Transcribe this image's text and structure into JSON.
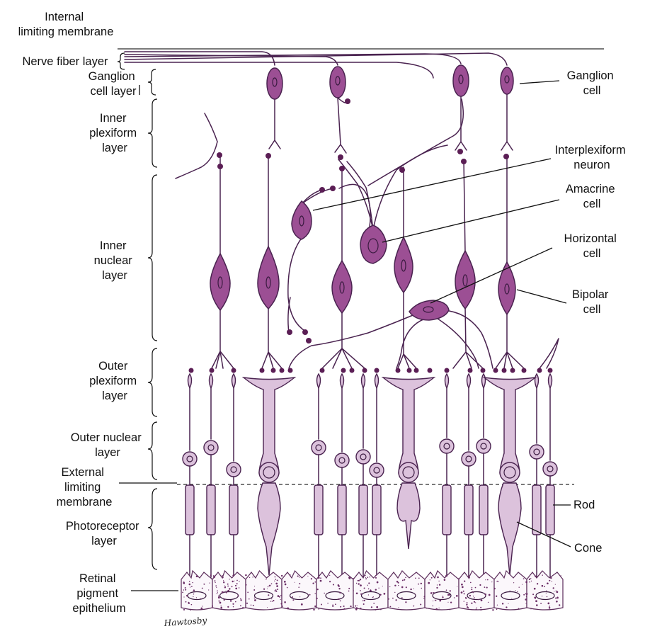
{
  "labels": {
    "internal_limiting_membrane": [
      "Internal",
      "limiting membrane"
    ],
    "nerve_fiber_layer": [
      "Nerve fiber layer"
    ],
    "ganglion_cell_layer": [
      "Ganglion",
      "cell layer"
    ],
    "inner_plexiform_layer": [
      "Inner",
      "plexiform",
      "layer"
    ],
    "inner_nuclear_layer": [
      "Inner",
      "nuclear",
      "layer"
    ],
    "outer_plexiform_layer": [
      "Outer",
      "plexiform",
      "layer"
    ],
    "outer_nuclear_layer": [
      "Outer nuclear",
      "layer"
    ],
    "external_limiting_membrane": [
      "External",
      "limiting",
      "membrane"
    ],
    "photoreceptor_layer": [
      "Photoreceptor",
      "layer"
    ],
    "retinal_pigment_epithelium": [
      "Retinal",
      "pigment",
      "epithelium"
    ],
    "ganglion_cell": [
      "Ganglion",
      "cell"
    ],
    "interplexiform_neuron": [
      "Interplexiform",
      "neuron"
    ],
    "amacrine_cell": [
      "Amacrine",
      "cell"
    ],
    "horizontal_cell": [
      "Horizontal",
      "cell"
    ],
    "bipolar_cell": [
      "Bipolar",
      "cell"
    ],
    "rod": [
      "Rod"
    ],
    "cone": [
      "Cone"
    ]
  },
  "signature": "Hawtosby",
  "colors": {
    "neuron_fill": "#9c4f94",
    "outline": "#4a2350",
    "photoreceptor_fill": "#dcc2dc",
    "synapse_dot": "#5b1e55",
    "epithelium_fill": "#fbf7fb"
  }
}
